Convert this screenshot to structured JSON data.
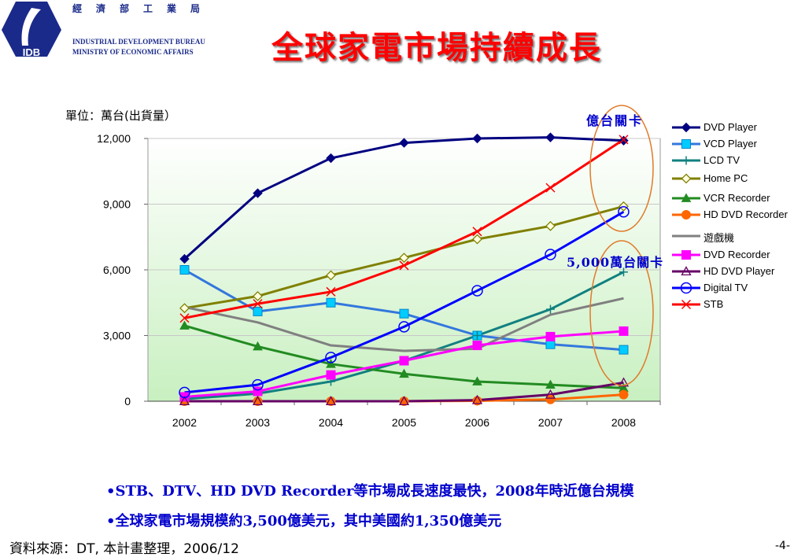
{
  "header": {
    "logo_text": "IDB",
    "org_name_zh": "經濟部工業局",
    "org_name_en_1": "INDUSTRIAL DEVELOPMENT BUREAU",
    "org_name_en_2": "MINISTRY OF ECONOMIC AFFAIRS",
    "title": "全球家電市場持續成長",
    "accent_color": "#ff0000",
    "brand_color": "#1a2a8a"
  },
  "chart_data": {
    "type": "line",
    "unit_label": "單位：萬台(出貨量）",
    "categories": [
      "2002",
      "2003",
      "2004",
      "2005",
      "2006",
      "2007",
      "2008"
    ],
    "ylim": [
      0,
      12000
    ],
    "yticks": [
      "0",
      "3,000",
      "6,000",
      "9,000",
      "12,000"
    ],
    "ytick_values": [
      0,
      3000,
      6000,
      9000,
      12000
    ],
    "grid": true,
    "legend_position": "right",
    "plot_background": "gradient-white-to-light-green",
    "series": [
      {
        "name": "DVD Player",
        "color": "#000080",
        "marker": "diamond-filled",
        "values": [
          6500,
          9500,
          11100,
          11800,
          12000,
          12050,
          11900
        ]
      },
      {
        "name": "VCD Player",
        "color": "#3377dd",
        "marker": "square-cyan",
        "marker_color": "#00ccff",
        "values": [
          6000,
          4100,
          4500,
          4000,
          3000,
          2600,
          2350
        ]
      },
      {
        "name": "LCD TV",
        "color": "#118080",
        "marker": "plus",
        "values": [
          100,
          350,
          900,
          1850,
          3000,
          4200,
          5900
        ]
      },
      {
        "name": "Home PC",
        "color": "#808000",
        "marker": "diamond-open",
        "values": [
          4250,
          4800,
          5750,
          6550,
          7400,
          8000,
          8900
        ]
      },
      {
        "name": "VCR Recorder",
        "color": "#228B22",
        "marker": "triangle-filled",
        "values": [
          3450,
          2500,
          1700,
          1250,
          900,
          750,
          600
        ]
      },
      {
        "name": "HD DVD Recorder",
        "color": "#ff6600",
        "marker": "circle-filled",
        "values": [
          0,
          0,
          0,
          0,
          20,
          80,
          300
        ]
      },
      {
        "name": "遊戲機",
        "color": "#808080",
        "marker": "none",
        "values": [
          4300,
          3600,
          2550,
          2300,
          2400,
          3950,
          4700
        ]
      },
      {
        "name": "DVD Recorder",
        "color": "#ff00ff",
        "marker": "square-filled",
        "values": [
          200,
          450,
          1200,
          1850,
          2550,
          2950,
          3200
        ]
      },
      {
        "name": "HD DVD Player",
        "color": "#660066",
        "marker": "triangle-open",
        "values": [
          0,
          0,
          0,
          0,
          50,
          300,
          850
        ]
      },
      {
        "name": "Digital TV",
        "color": "#0000ff",
        "marker": "circle-open",
        "values": [
          400,
          750,
          2000,
          3400,
          5050,
          6700,
          8650
        ]
      },
      {
        "name": "STB",
        "color": "#ff0000",
        "marker": "x",
        "values": [
          3800,
          4450,
          5000,
          6200,
          7750,
          9750,
          11950
        ]
      }
    ],
    "annotations": [
      {
        "text": "億台關卡",
        "color": "#0000cc"
      },
      {
        "text": "5,000萬台關卡",
        "color": "#0000cc"
      }
    ]
  },
  "notes": {
    "bullet_1": "•STB、DTV、HD DVD Recorder等市場成長速度最快，2008年時近億台規模",
    "bullet_2": "•全球家電市場規模約3,500億美元，其中美國約1,350億美元"
  },
  "footer": {
    "source": "資料來源：DT, 本計畫整理，2006/12",
    "page_number": "-4-"
  }
}
